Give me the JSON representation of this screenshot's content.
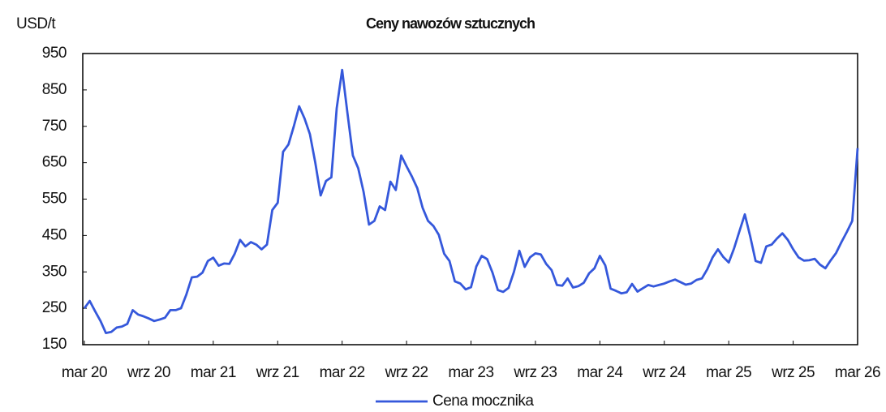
{
  "chart_data": {
    "type": "line",
    "title": "Ceny nawozów sztucznych",
    "y_label": "USD/t",
    "categories": [
      "mar 20",
      null,
      null,
      null,
      null,
      null,
      null,
      null,
      null,
      null,
      null,
      null,
      "wrz 20",
      null,
      null,
      null,
      null,
      null,
      null,
      null,
      null,
      null,
      null,
      null,
      "mar 21",
      null,
      null,
      null,
      null,
      null,
      null,
      null,
      null,
      null,
      null,
      null,
      "wrz 21",
      null,
      null,
      null,
      null,
      null,
      null,
      null,
      null,
      null,
      null,
      null,
      "mar 22",
      null,
      null,
      null,
      null,
      null,
      null,
      null,
      null,
      null,
      null,
      null,
      "wrz 22",
      null,
      null,
      null,
      null,
      null,
      null,
      null,
      null,
      null,
      null,
      null,
      "mar 23",
      null,
      null,
      null,
      null,
      null,
      null,
      null,
      null,
      null,
      null,
      null,
      "wrz 23",
      null,
      null,
      null,
      null,
      null,
      null,
      null,
      null,
      null,
      null,
      null,
      "mar 24",
      null,
      null,
      null,
      null,
      null,
      null,
      null,
      null,
      null,
      null,
      null,
      "wrz 24",
      null,
      null,
      null,
      null,
      null,
      null,
      null,
      null,
      null,
      null,
      null,
      "mar 25",
      null,
      null,
      null,
      null,
      null,
      null,
      null,
      null,
      null,
      null,
      null,
      "wrz 25",
      null,
      null,
      null,
      null,
      null,
      null,
      null,
      null,
      null,
      null,
      null,
      "mar 26"
    ],
    "series": [
      {
        "name": "Cena mocznika",
        "color": "#3558db",
        "values": [
          250,
          270,
          242,
          215,
          182,
          185,
          197,
          200,
          207,
          245,
          233,
          228,
          222,
          215,
          219,
          224,
          245,
          245,
          250,
          288,
          335,
          337,
          348,
          380,
          389,
          367,
          373,
          372,
          400,
          438,
          420,
          432,
          425,
          412,
          425,
          520,
          540,
          680,
          700,
          750,
          805,
          772,
          728,
          650,
          560,
          600,
          610,
          800,
          905,
          785,
          670,
          635,
          570,
          480,
          490,
          530,
          520,
          598,
          575,
          670,
          640,
          612,
          580,
          526,
          490,
          476,
          452,
          400,
          380,
          324,
          318,
          302,
          308,
          365,
          394,
          385,
          348,
          300,
          295,
          306,
          350,
          408,
          364,
          390,
          401,
          398,
          372,
          355,
          314,
          312,
          332,
          307,
          311,
          320,
          346,
          360,
          394,
          368,
          304,
          298,
          291,
          294,
          317,
          296,
          305,
          314,
          310,
          314,
          318,
          324,
          329,
          322,
          315,
          318,
          328,
          332,
          357,
          390,
          412,
          391,
          376,
          415,
          462,
          508,
          448,
          380,
          375,
          420,
          425,
          442,
          456,
          438,
          412,
          390,
          381,
          382,
          386,
          370,
          360,
          382,
          402,
          432,
          460,
          490,
          690
        ]
      }
    ],
    "ylim": [
      150,
      950
    ],
    "yticks": [
      150,
      250,
      350,
      450,
      550,
      650,
      750,
      850,
      950
    ],
    "legend": "bottom"
  }
}
